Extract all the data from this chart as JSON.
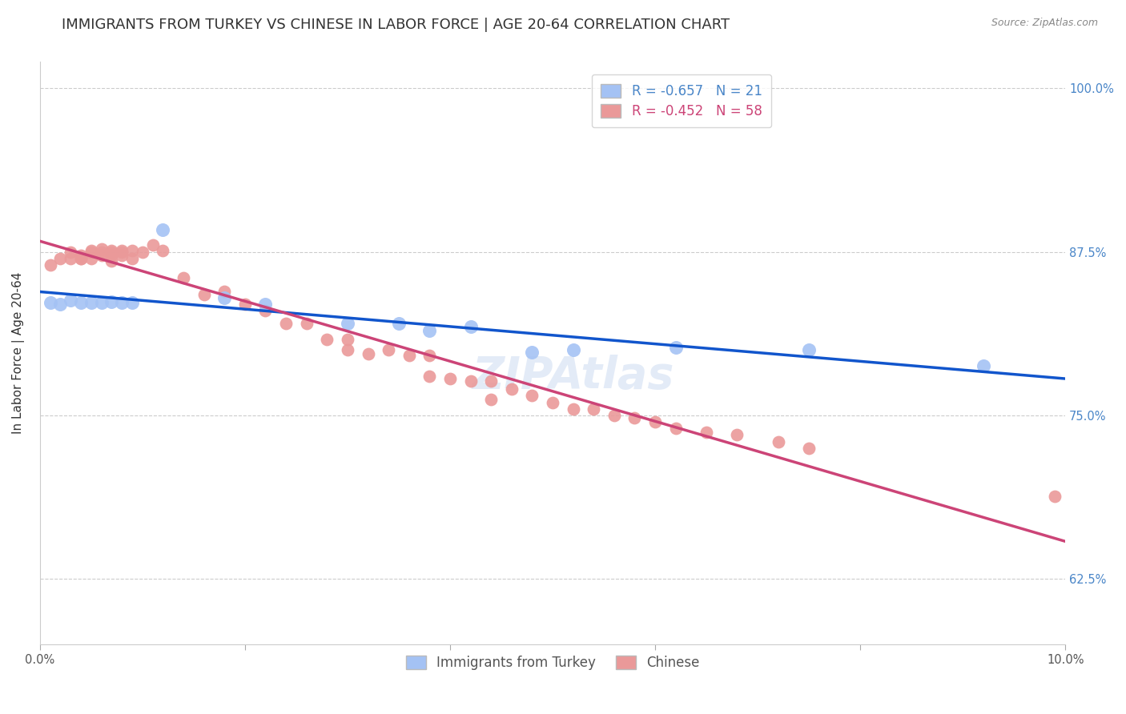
{
  "title": "IMMIGRANTS FROM TURKEY VS CHINESE IN LABOR FORCE | AGE 20-64 CORRELATION CHART",
  "source": "Source: ZipAtlas.com",
  "ylabel": "In Labor Force | Age 20-64",
  "xlim": [
    0.0,
    0.1
  ],
  "ylim": [
    0.575,
    1.02
  ],
  "xticks": [
    0.0,
    0.02,
    0.04,
    0.06,
    0.08,
    0.1
  ],
  "xticklabels": [
    "0.0%",
    "",
    "",
    "",
    "",
    "10.0%"
  ],
  "yticks": [
    0.625,
    0.75,
    0.875,
    1.0
  ],
  "yticklabels": [
    "62.5%",
    "75.0%",
    "87.5%",
    "100.0%"
  ],
  "legend_blue_r": "-0.657",
  "legend_blue_n": "21",
  "legend_pink_r": "-0.452",
  "legend_pink_n": "58",
  "legend_label_blue": "Immigrants from Turkey",
  "legend_label_pink": "Chinese",
  "color_blue": "#a4c2f4",
  "color_pink": "#ea9999",
  "line_color_blue": "#1155cc",
  "line_color_pink": "#cc4477",
  "watermark": "ZIPAtlas",
  "title_fontsize": 13,
  "axis_label_fontsize": 11,
  "tick_fontsize": 10.5,
  "legend_fontsize": 12,
  "blue_x": [
    0.001,
    0.002,
    0.003,
    0.004,
    0.005,
    0.006,
    0.007,
    0.008,
    0.009,
    0.012,
    0.018,
    0.022,
    0.03,
    0.035,
    0.038,
    0.042,
    0.048,
    0.052,
    0.062,
    0.075,
    0.092
  ],
  "blue_y": [
    0.836,
    0.835,
    0.838,
    0.836,
    0.836,
    0.836,
    0.837,
    0.836,
    0.836,
    0.892,
    0.84,
    0.835,
    0.82,
    0.82,
    0.815,
    0.818,
    0.798,
    0.8,
    0.802,
    0.8,
    0.788
  ],
  "pink_x": [
    0.001,
    0.002,
    0.003,
    0.003,
    0.004,
    0.004,
    0.004,
    0.005,
    0.005,
    0.005,
    0.006,
    0.006,
    0.006,
    0.007,
    0.007,
    0.007,
    0.007,
    0.008,
    0.008,
    0.008,
    0.009,
    0.009,
    0.01,
    0.011,
    0.012,
    0.014,
    0.016,
    0.018,
    0.02,
    0.022,
    0.024,
    0.026,
    0.028,
    0.03,
    0.03,
    0.032,
    0.034,
    0.036,
    0.038,
    0.038,
    0.04,
    0.042,
    0.044,
    0.044,
    0.046,
    0.048,
    0.05,
    0.052,
    0.054,
    0.056,
    0.058,
    0.06,
    0.062,
    0.065,
    0.068,
    0.072,
    0.075,
    0.099
  ],
  "pink_y": [
    0.865,
    0.87,
    0.875,
    0.87,
    0.872,
    0.87,
    0.87,
    0.875,
    0.876,
    0.87,
    0.877,
    0.875,
    0.872,
    0.875,
    0.876,
    0.872,
    0.868,
    0.876,
    0.875,
    0.872,
    0.876,
    0.87,
    0.875,
    0.88,
    0.876,
    0.855,
    0.842,
    0.845,
    0.835,
    0.83,
    0.82,
    0.82,
    0.808,
    0.808,
    0.8,
    0.797,
    0.8,
    0.796,
    0.796,
    0.78,
    0.778,
    0.776,
    0.776,
    0.762,
    0.77,
    0.765,
    0.76,
    0.755,
    0.755,
    0.75,
    0.748,
    0.745,
    0.74,
    0.737,
    0.735,
    0.73,
    0.725,
    0.688
  ]
}
